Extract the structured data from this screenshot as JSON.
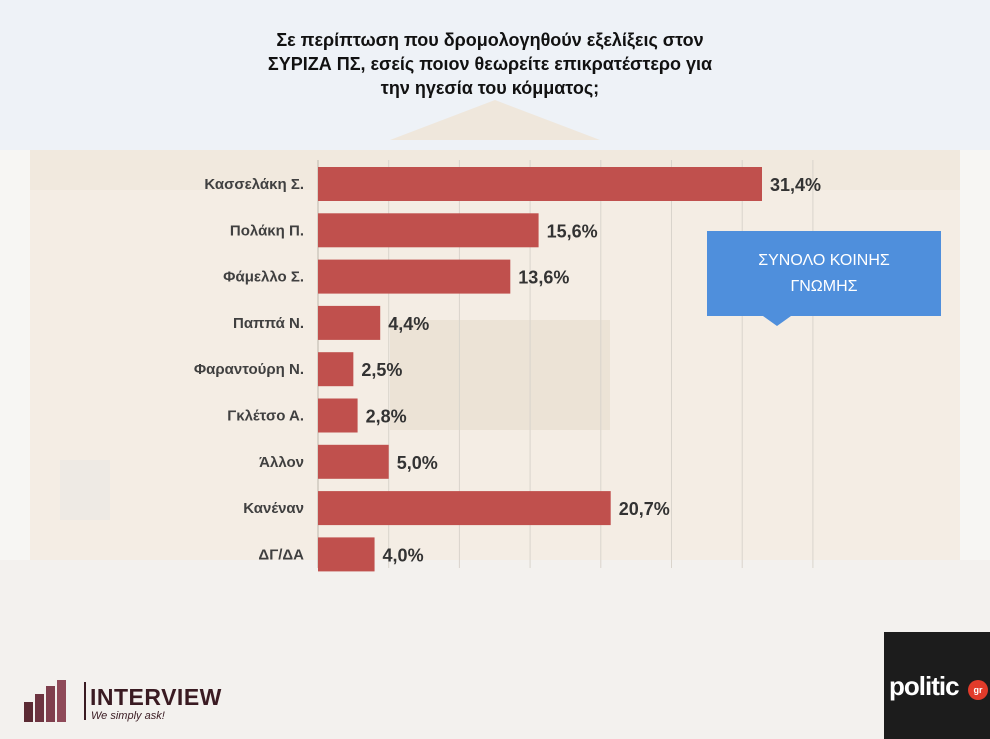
{
  "title_lines": [
    "Σε περίπτωση που δρομολογηθούν εξελίξεις στον",
    "ΣΥΡΙΖΑ ΠΣ, εσείς ποιον θεωρείτε επικρατέστερο για",
    "την ηγεσία του κόμματος;"
  ],
  "callout": {
    "line1": "ΣΥΝΟΛΟ ΚΟΙΝΗΣ",
    "line2": "ΓΝΩΜΗΣ"
  },
  "chart_data": {
    "type": "bar",
    "orientation": "horizontal",
    "title": "Σε περίπτωση που δρομολογηθούν εξελίξεις στον ΣΥΡΙΖΑ ΠΣ, εσείς ποιον θεωρείτε επικρατέστερο για την ηγεσία του κόμματος;",
    "categories": [
      "Κασσελάκη Σ.",
      "Πολάκη Π.",
      "Φάμελλο Σ.",
      "Παππά Ν.",
      "Φαραντούρη Ν.",
      "Γκλέτσο Α.",
      "Άλλον",
      "Κανέναν",
      "ΔΓ/ΔΑ"
    ],
    "values": [
      31.4,
      15.6,
      13.6,
      4.4,
      2.5,
      2.8,
      5.0,
      20.7,
      4.0
    ],
    "value_labels": [
      "31,4%",
      "15,6%",
      "13,6%",
      "4,4%",
      "2,5%",
      "2,8%",
      "5,0%",
      "20,7%",
      "4,0%"
    ],
    "xlim": [
      0,
      35
    ],
    "bar_color": "#c0504d"
  },
  "branding": {
    "interview_name": "INTERVIEW",
    "interview_tagline": "We simply ask!",
    "politic_name": "politic",
    "politic_suffix": "gr"
  }
}
